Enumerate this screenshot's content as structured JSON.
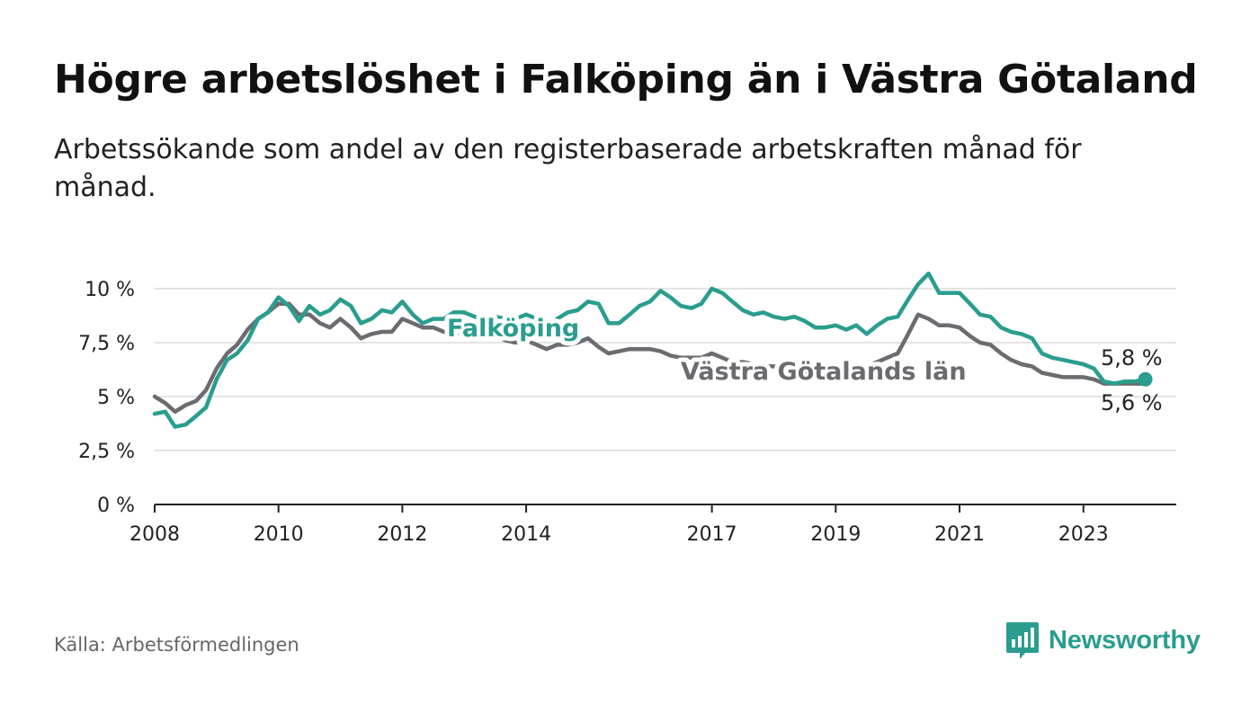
{
  "title": "Högre arbetslöshet i Falköping än i Västra Götaland",
  "subtitle": "Arbetssökande som andel av den registerbaserade arbetskraften månad för månad.",
  "source": "Källa: Arbetsförmedlingen",
  "brand": {
    "name": "Newsworthy",
    "icon": "newsworthy-logo-icon",
    "color": "#2a9d8f"
  },
  "chart_data": {
    "type": "line",
    "title": "Högre arbetslöshet i Falköping än i Västra Götaland",
    "xlabel": "",
    "ylabel": "",
    "ylim": [
      0,
      10
    ],
    "xlim": [
      2008,
      2024.5
    ],
    "y_ticks": [
      {
        "value": 10,
        "label": "10 %"
      },
      {
        "value": 7.5,
        "label": "7,5 %"
      },
      {
        "value": 5,
        "label": "5 %"
      },
      {
        "value": 2.5,
        "label": "2,5 %"
      },
      {
        "value": 0,
        "label": "0 %"
      }
    ],
    "x_ticks": [
      {
        "value": 2008,
        "label": "2008"
      },
      {
        "value": 2010,
        "label": "2010"
      },
      {
        "value": 2012,
        "label": "2012"
      },
      {
        "value": 2014,
        "label": "2014"
      },
      {
        "value": 2017,
        "label": "2017"
      },
      {
        "value": 2019,
        "label": "2019"
      },
      {
        "value": 2021,
        "label": "2021"
      },
      {
        "value": 2023,
        "label": "2023"
      }
    ],
    "grid": true,
    "series": [
      {
        "name": "Västra Götalands län",
        "color": "#6b6b70",
        "label": "Västra Götalands län",
        "end_label": "5,6 %",
        "points": [
          [
            2008.0,
            5.0
          ],
          [
            2008.17,
            4.7
          ],
          [
            2008.33,
            4.3
          ],
          [
            2008.5,
            4.6
          ],
          [
            2008.67,
            4.8
          ],
          [
            2008.83,
            5.3
          ],
          [
            2009.0,
            6.3
          ],
          [
            2009.17,
            7.0
          ],
          [
            2009.33,
            7.4
          ],
          [
            2009.5,
            8.1
          ],
          [
            2009.67,
            8.6
          ],
          [
            2009.83,
            8.9
          ],
          [
            2010.0,
            9.3
          ],
          [
            2010.17,
            9.3
          ],
          [
            2010.33,
            8.8
          ],
          [
            2010.5,
            8.8
          ],
          [
            2010.67,
            8.4
          ],
          [
            2010.83,
            8.2
          ],
          [
            2011.0,
            8.6
          ],
          [
            2011.17,
            8.2
          ],
          [
            2011.33,
            7.7
          ],
          [
            2011.5,
            7.9
          ],
          [
            2011.67,
            8.0
          ],
          [
            2011.83,
            8.0
          ],
          [
            2012.0,
            8.6
          ],
          [
            2012.17,
            8.4
          ],
          [
            2012.33,
            8.2
          ],
          [
            2012.5,
            8.2
          ],
          [
            2012.67,
            8.0
          ],
          [
            2012.83,
            7.9
          ],
          [
            2013.0,
            8.0
          ],
          [
            2013.17,
            8.0
          ],
          [
            2013.33,
            7.8
          ],
          [
            2013.5,
            7.8
          ],
          [
            2013.67,
            7.6
          ],
          [
            2013.83,
            7.5
          ],
          [
            2014.0,
            7.6
          ],
          [
            2014.17,
            7.4
          ],
          [
            2014.33,
            7.2
          ],
          [
            2014.5,
            7.4
          ],
          [
            2014.67,
            7.4
          ],
          [
            2014.83,
            7.5
          ],
          [
            2015.0,
            7.7
          ],
          [
            2015.17,
            7.3
          ],
          [
            2015.33,
            7.0
          ],
          [
            2015.5,
            7.1
          ],
          [
            2015.67,
            7.2
          ],
          [
            2015.83,
            7.2
          ],
          [
            2016.0,
            7.2
          ],
          [
            2016.17,
            7.1
          ],
          [
            2016.33,
            6.9
          ],
          [
            2016.5,
            6.8
          ],
          [
            2016.67,
            6.8
          ],
          [
            2016.83,
            6.8
          ],
          [
            2017.0,
            7.0
          ],
          [
            2017.17,
            6.8
          ],
          [
            2017.33,
            6.6
          ],
          [
            2017.5,
            6.6
          ],
          [
            2017.67,
            6.5
          ],
          [
            2017.83,
            6.4
          ],
          [
            2018.0,
            6.4
          ],
          [
            2018.17,
            6.3
          ],
          [
            2018.33,
            6.2
          ],
          [
            2018.5,
            6.2
          ],
          [
            2018.67,
            6.1
          ],
          [
            2018.83,
            6.1
          ],
          [
            2019.0,
            6.2
          ],
          [
            2019.17,
            6.2
          ],
          [
            2019.33,
            6.3
          ],
          [
            2019.5,
            6.4
          ],
          [
            2019.67,
            6.6
          ],
          [
            2019.83,
            6.8
          ],
          [
            2020.0,
            7.0
          ],
          [
            2020.17,
            7.9
          ],
          [
            2020.33,
            8.8
          ],
          [
            2020.5,
            8.6
          ],
          [
            2020.67,
            8.3
          ],
          [
            2020.83,
            8.3
          ],
          [
            2021.0,
            8.2
          ],
          [
            2021.17,
            7.8
          ],
          [
            2021.33,
            7.5
          ],
          [
            2021.5,
            7.4
          ],
          [
            2021.67,
            7.0
          ],
          [
            2021.83,
            6.7
          ],
          [
            2022.0,
            6.5
          ],
          [
            2022.17,
            6.4
          ],
          [
            2022.33,
            6.1
          ],
          [
            2022.5,
            6.0
          ],
          [
            2022.67,
            5.9
          ],
          [
            2022.83,
            5.9
          ],
          [
            2023.0,
            5.9
          ],
          [
            2023.17,
            5.8
          ],
          [
            2023.33,
            5.6
          ],
          [
            2023.5,
            5.6
          ],
          [
            2023.67,
            5.6
          ],
          [
            2023.83,
            5.6
          ],
          [
            2024.0,
            5.6
          ]
        ]
      },
      {
        "name": "Falköping",
        "color": "#2a9d8f",
        "label": "Falköping",
        "end_label": "5,8 %",
        "points": [
          [
            2008.0,
            4.2
          ],
          [
            2008.17,
            4.3
          ],
          [
            2008.33,
            3.6
          ],
          [
            2008.5,
            3.7
          ],
          [
            2008.67,
            4.1
          ],
          [
            2008.83,
            4.5
          ],
          [
            2009.0,
            5.8
          ],
          [
            2009.17,
            6.7
          ],
          [
            2009.33,
            7.0
          ],
          [
            2009.5,
            7.6
          ],
          [
            2009.67,
            8.6
          ],
          [
            2009.83,
            8.9
          ],
          [
            2010.0,
            9.6
          ],
          [
            2010.17,
            9.2
          ],
          [
            2010.33,
            8.5
          ],
          [
            2010.5,
            9.2
          ],
          [
            2010.67,
            8.8
          ],
          [
            2010.83,
            9.0
          ],
          [
            2011.0,
            9.5
          ],
          [
            2011.17,
            9.2
          ],
          [
            2011.33,
            8.4
          ],
          [
            2011.5,
            8.6
          ],
          [
            2011.67,
            9.0
          ],
          [
            2011.83,
            8.9
          ],
          [
            2012.0,
            9.4
          ],
          [
            2012.17,
            8.8
          ],
          [
            2012.33,
            8.4
          ],
          [
            2012.5,
            8.6
          ],
          [
            2012.67,
            8.6
          ],
          [
            2012.83,
            8.9
          ],
          [
            2013.0,
            8.9
          ],
          [
            2013.17,
            8.7
          ],
          [
            2013.33,
            8.5
          ],
          [
            2013.5,
            8.7
          ],
          [
            2013.67,
            8.6
          ],
          [
            2013.83,
            8.6
          ],
          [
            2014.0,
            8.8
          ],
          [
            2014.17,
            8.6
          ],
          [
            2014.33,
            8.0
          ],
          [
            2014.5,
            8.6
          ],
          [
            2014.67,
            8.9
          ],
          [
            2014.83,
            9.0
          ],
          [
            2015.0,
            9.4
          ],
          [
            2015.17,
            9.3
          ],
          [
            2015.33,
            8.4
          ],
          [
            2015.5,
            8.4
          ],
          [
            2015.67,
            8.8
          ],
          [
            2015.83,
            9.2
          ],
          [
            2016.0,
            9.4
          ],
          [
            2016.17,
            9.9
          ],
          [
            2016.33,
            9.6
          ],
          [
            2016.5,
            9.2
          ],
          [
            2016.67,
            9.1
          ],
          [
            2016.83,
            9.3
          ],
          [
            2017.0,
            10.0
          ],
          [
            2017.17,
            9.8
          ],
          [
            2017.33,
            9.4
          ],
          [
            2017.5,
            9.0
          ],
          [
            2017.67,
            8.8
          ],
          [
            2017.83,
            8.9
          ],
          [
            2018.0,
            8.7
          ],
          [
            2018.17,
            8.6
          ],
          [
            2018.33,
            8.7
          ],
          [
            2018.5,
            8.5
          ],
          [
            2018.67,
            8.2
          ],
          [
            2018.83,
            8.2
          ],
          [
            2019.0,
            8.3
          ],
          [
            2019.17,
            8.1
          ],
          [
            2019.33,
            8.3
          ],
          [
            2019.5,
            7.9
          ],
          [
            2019.67,
            8.3
          ],
          [
            2019.83,
            8.6
          ],
          [
            2020.0,
            8.7
          ],
          [
            2020.17,
            9.5
          ],
          [
            2020.33,
            10.2
          ],
          [
            2020.5,
            10.7
          ],
          [
            2020.67,
            9.8
          ],
          [
            2020.83,
            9.8
          ],
          [
            2021.0,
            9.8
          ],
          [
            2021.17,
            9.3
          ],
          [
            2021.33,
            8.8
          ],
          [
            2021.5,
            8.7
          ],
          [
            2021.67,
            8.2
          ],
          [
            2021.83,
            8.0
          ],
          [
            2022.0,
            7.9
          ],
          [
            2022.17,
            7.7
          ],
          [
            2022.33,
            7.0
          ],
          [
            2022.5,
            6.8
          ],
          [
            2022.67,
            6.7
          ],
          [
            2022.83,
            6.6
          ],
          [
            2023.0,
            6.5
          ],
          [
            2023.17,
            6.3
          ],
          [
            2023.33,
            5.7
          ],
          [
            2023.5,
            5.6
          ],
          [
            2023.67,
            5.7
          ],
          [
            2023.83,
            5.7
          ],
          [
            2024.0,
            5.8
          ]
        ]
      }
    ]
  }
}
